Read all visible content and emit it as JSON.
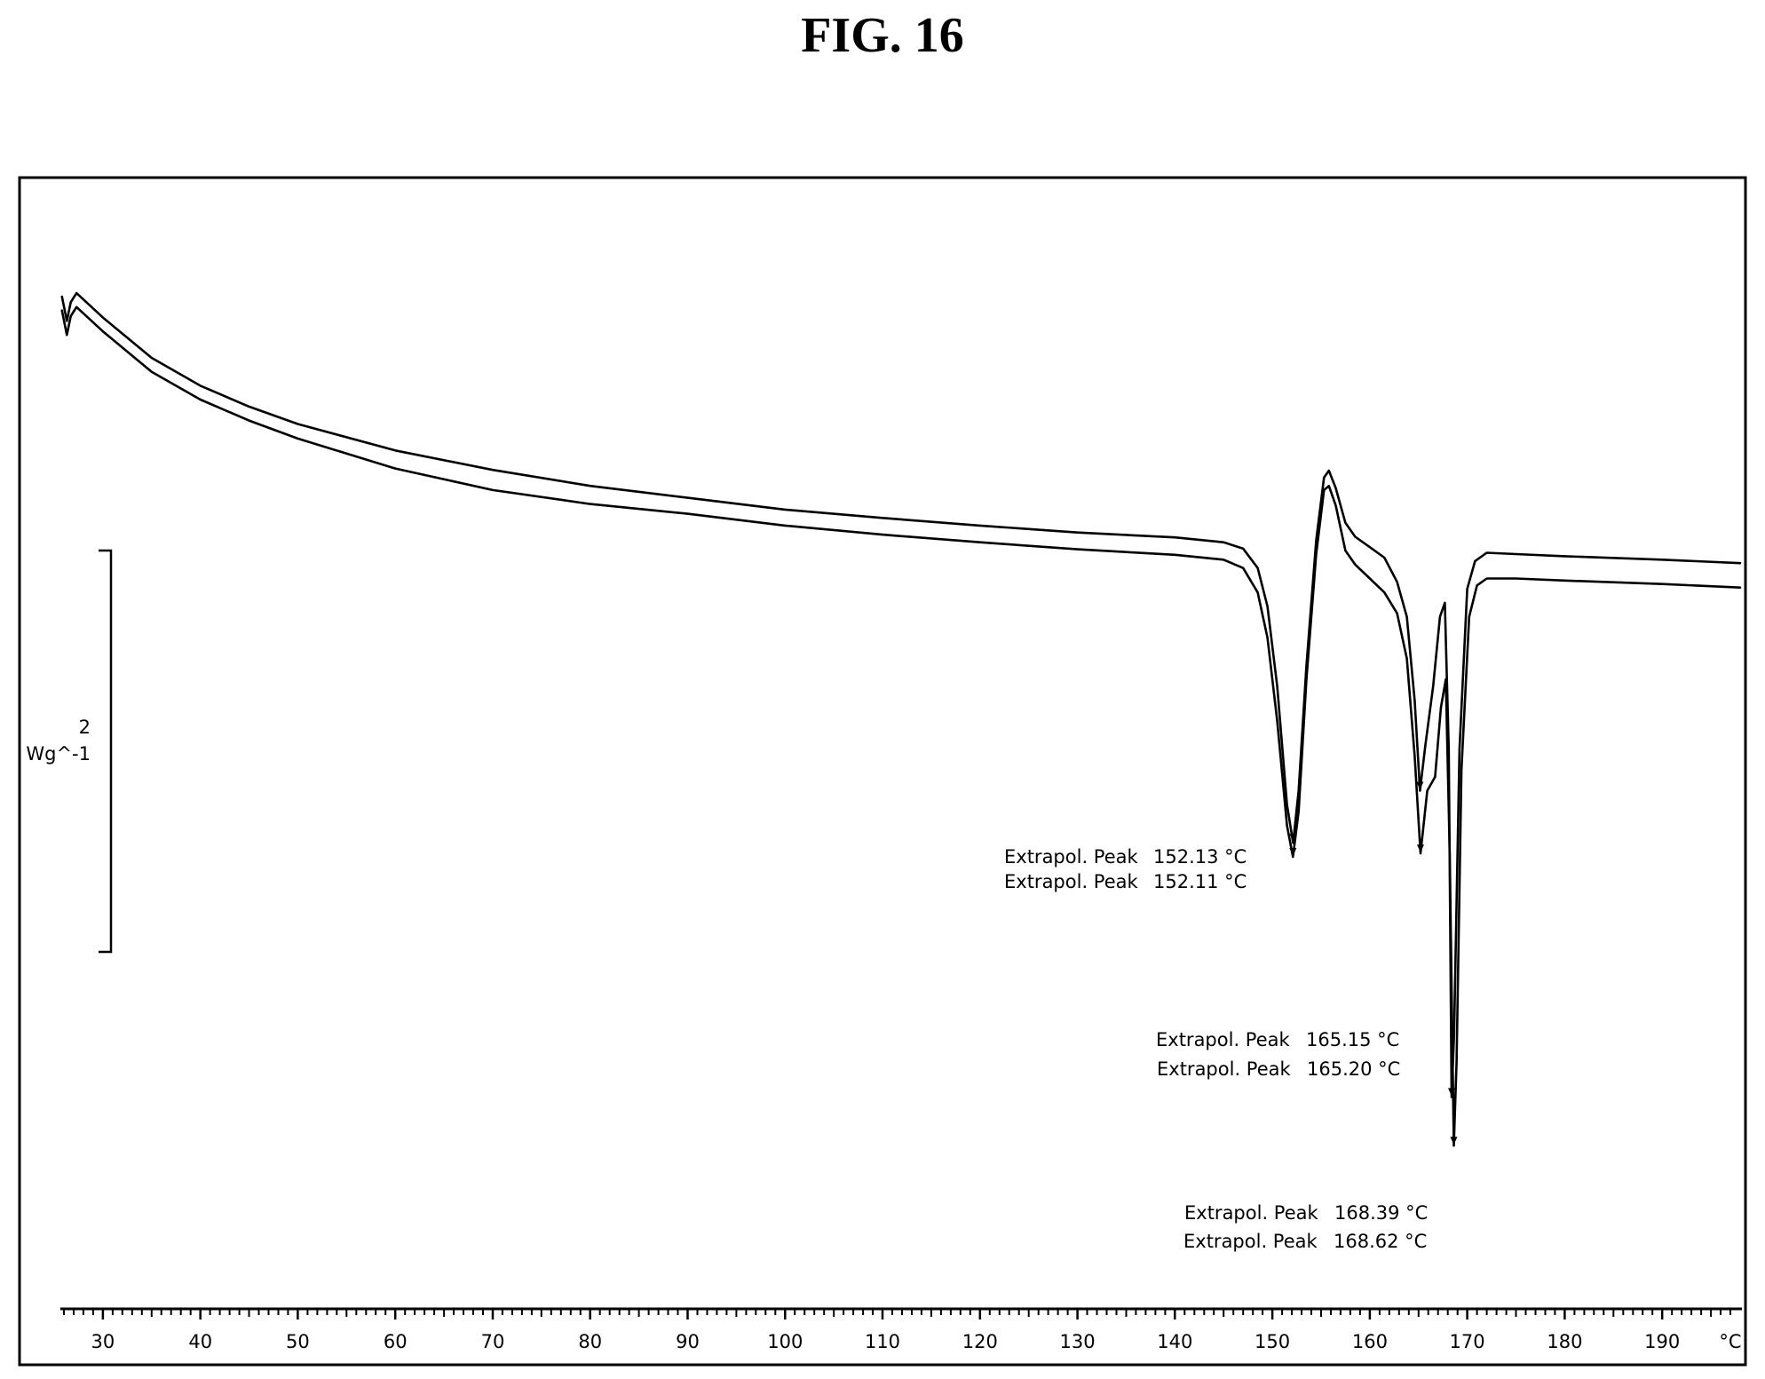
{
  "figure": {
    "title": "FIG. 16"
  },
  "chart_data": {
    "type": "line",
    "title": "FIG. 16",
    "xlabel": "",
    "xunit": "°C",
    "xlim": [
      25,
      198
    ],
    "x_ticks": [
      30,
      40,
      50,
      60,
      70,
      80,
      90,
      100,
      110,
      120,
      130,
      140,
      150,
      160,
      170,
      180,
      190
    ],
    "x_tick_labels": [
      "30",
      "40",
      "50",
      "60",
      "70",
      "80",
      "90",
      "100",
      "110",
      "120",
      "130",
      "140",
      "150",
      "160",
      "170",
      "180",
      "190"
    ],
    "ylabel": "Wg^-1",
    "scale_bar": {
      "value": "2",
      "unit": "Wg^-1"
    },
    "ylim": [
      -10.2,
      5.2
    ],
    "grid": false,
    "series": [
      {
        "points": [
          [
            25.8,
            4.0
          ],
          [
            26.3,
            3.65
          ],
          [
            26.7,
            3.92
          ],
          [
            27.3,
            4.05
          ],
          [
            30,
            3.7
          ],
          [
            35,
            3.12
          ],
          [
            40,
            2.72
          ],
          [
            45,
            2.42
          ],
          [
            50,
            2.17
          ],
          [
            60,
            1.79
          ],
          [
            70,
            1.51
          ],
          [
            80,
            1.28
          ],
          [
            90,
            1.11
          ],
          [
            100,
            0.94
          ],
          [
            110,
            0.82
          ],
          [
            120,
            0.71
          ],
          [
            130,
            0.61
          ],
          [
            140,
            0.54
          ],
          [
            145,
            0.47
          ],
          [
            147,
            0.38
          ],
          [
            148.5,
            0.1
          ],
          [
            149.5,
            -0.45
          ],
          [
            150.5,
            -1.6
          ],
          [
            151.5,
            -3.3
          ],
          [
            152.13,
            -3.85
          ],
          [
            152.7,
            -3.1
          ],
          [
            153.5,
            -1.3
          ],
          [
            154.5,
            0.5
          ],
          [
            155.3,
            1.4
          ],
          [
            155.8,
            1.5
          ],
          [
            156.5,
            1.25
          ],
          [
            157.5,
            0.75
          ],
          [
            158.5,
            0.55
          ],
          [
            160,
            0.4
          ],
          [
            161.5,
            0.25
          ],
          [
            162.8,
            -0.1
          ],
          [
            163.8,
            -0.6
          ],
          [
            164.6,
            -1.8
          ],
          [
            165.15,
            -3.1
          ],
          [
            165.7,
            -2.45
          ],
          [
            166.5,
            -1.6
          ],
          [
            167.2,
            -0.6
          ],
          [
            167.7,
            -0.4
          ],
          [
            168.1,
            -2.5
          ],
          [
            168.39,
            -7.5
          ],
          [
            168.65,
            -6.6
          ],
          [
            169.2,
            -2.5
          ],
          [
            170,
            -0.2
          ],
          [
            170.8,
            0.2
          ],
          [
            172,
            0.32
          ],
          [
            175,
            0.3
          ],
          [
            180,
            0.27
          ],
          [
            190,
            0.22
          ],
          [
            198,
            0.17
          ]
        ]
      },
      {
        "points": [
          [
            25.8,
            3.8
          ],
          [
            26.3,
            3.45
          ],
          [
            26.7,
            3.72
          ],
          [
            27.3,
            3.85
          ],
          [
            30,
            3.5
          ],
          [
            35,
            2.92
          ],
          [
            40,
            2.52
          ],
          [
            45,
            2.22
          ],
          [
            50,
            1.96
          ],
          [
            60,
            1.53
          ],
          [
            70,
            1.22
          ],
          [
            80,
            1.02
          ],
          [
            90,
            0.88
          ],
          [
            100,
            0.71
          ],
          [
            110,
            0.58
          ],
          [
            120,
            0.47
          ],
          [
            130,
            0.37
          ],
          [
            140,
            0.29
          ],
          [
            145,
            0.22
          ],
          [
            147,
            0.1
          ],
          [
            148.5,
            -0.25
          ],
          [
            149.5,
            -0.9
          ],
          [
            150.5,
            -2.1
          ],
          [
            151.5,
            -3.6
          ],
          [
            152.11,
            -4.05
          ],
          [
            152.7,
            -3.4
          ],
          [
            153.5,
            -1.5
          ],
          [
            154.5,
            0.3
          ],
          [
            155.3,
            1.22
          ],
          [
            155.8,
            1.28
          ],
          [
            156.5,
            1.0
          ],
          [
            157.5,
            0.35
          ],
          [
            158.5,
            0.15
          ],
          [
            160,
            -0.05
          ],
          [
            161.5,
            -0.25
          ],
          [
            162.8,
            -0.55
          ],
          [
            163.8,
            -1.2
          ],
          [
            164.6,
            -2.6
          ],
          [
            165.2,
            -4.0
          ],
          [
            165.9,
            -3.1
          ],
          [
            166.7,
            -2.9
          ],
          [
            167.3,
            -1.9
          ],
          [
            167.8,
            -1.5
          ],
          [
            168.2,
            -4.0
          ],
          [
            168.62,
            -8.2
          ],
          [
            168.9,
            -7.0
          ],
          [
            169.4,
            -2.8
          ],
          [
            170.2,
            -0.6
          ],
          [
            171,
            -0.15
          ],
          [
            172,
            -0.05
          ],
          [
            175,
            -0.05
          ],
          [
            180,
            -0.08
          ],
          [
            190,
            -0.13
          ],
          [
            198,
            -0.18
          ]
        ]
      }
    ],
    "annotations": [
      {
        "label": "Extrapol. Peak",
        "value": "152.13 °C"
      },
      {
        "label": "Extrapol. Peak",
        "value": "152.11 °C"
      },
      {
        "label": "Extrapol. Peak",
        "value": "165.15 °C"
      },
      {
        "label": "Extrapol. Peak",
        "value": "165.20 °C"
      },
      {
        "label": "Extrapol. Peak",
        "value": "168.39 °C"
      },
      {
        "label": "Extrapol. Peak",
        "value": "168.62 °C"
      }
    ]
  }
}
